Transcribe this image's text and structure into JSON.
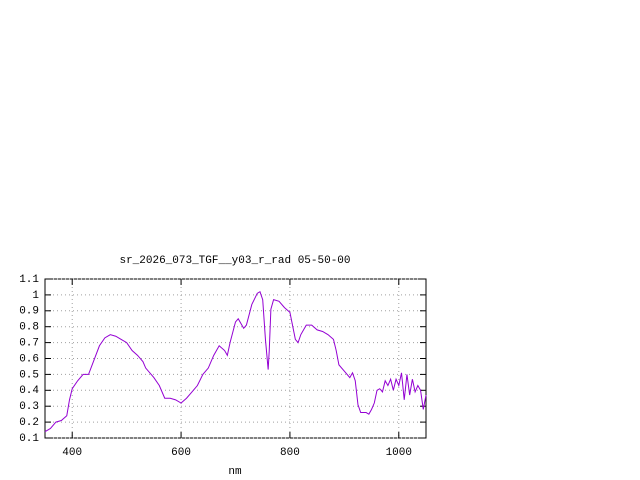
{
  "chart_data": {
    "type": "line",
    "title": "sr_2026_073_TGF__y03_r_rad 05-50-00",
    "x_label": "nm",
    "x": [
      350,
      360,
      370,
      380,
      390,
      395,
      400,
      410,
      420,
      430,
      440,
      450,
      460,
      470,
      480,
      490,
      500,
      510,
      520,
      530,
      535,
      550,
      560,
      570,
      580,
      590,
      600,
      610,
      620,
      630,
      640,
      650,
      660,
      670,
      680,
      685,
      690,
      700,
      705,
      715,
      720,
      730,
      740,
      745,
      750,
      755,
      760,
      762,
      765,
      770,
      780,
      790,
      800,
      810,
      815,
      820,
      830,
      840,
      850,
      860,
      870,
      880,
      885,
      890,
      900,
      910,
      915,
      920,
      925,
      930,
      940,
      945,
      950,
      955,
      960,
      965,
      970,
      975,
      980,
      985,
      990,
      995,
      1000,
      1005,
      1010,
      1015,
      1020,
      1025,
      1030,
      1035,
      1040,
      1045,
      1050
    ],
    "series": [
      {
        "color": "#9400d3",
        "values": [
          0.14,
          0.16,
          0.2,
          0.21,
          0.24,
          0.34,
          0.41,
          0.46,
          0.5,
          0.5,
          0.59,
          0.68,
          0.73,
          0.75,
          0.74,
          0.72,
          0.7,
          0.65,
          0.62,
          0.58,
          0.54,
          0.48,
          0.43,
          0.35,
          0.35,
          0.34,
          0.32,
          0.35,
          0.39,
          0.43,
          0.5,
          0.54,
          0.62,
          0.68,
          0.65,
          0.62,
          0.7,
          0.83,
          0.85,
          0.79,
          0.81,
          0.94,
          1.01,
          1.02,
          0.97,
          0.72,
          0.53,
          0.65,
          0.91,
          0.97,
          0.96,
          0.92,
          0.89,
          0.72,
          0.7,
          0.75,
          0.81,
          0.81,
          0.78,
          0.77,
          0.75,
          0.72,
          0.65,
          0.56,
          0.52,
          0.48,
          0.51,
          0.46,
          0.31,
          0.26,
          0.26,
          0.25,
          0.28,
          0.32,
          0.4,
          0.41,
          0.39,
          0.46,
          0.43,
          0.47,
          0.4,
          0.47,
          0.43,
          0.51,
          0.34,
          0.5,
          0.37,
          0.47,
          0.39,
          0.43,
          0.4,
          0.28,
          0.37
        ]
      }
    ],
    "xlim": [
      350,
      1050
    ],
    "xticks": [
      400,
      600,
      800,
      1000
    ],
    "ylim": [
      0.1,
      1.1
    ],
    "yticks": [
      0.1,
      0.2,
      0.3,
      0.4,
      0.5,
      0.6,
      0.7,
      0.8,
      0.9,
      1,
      1.1
    ],
    "grid": true
  }
}
